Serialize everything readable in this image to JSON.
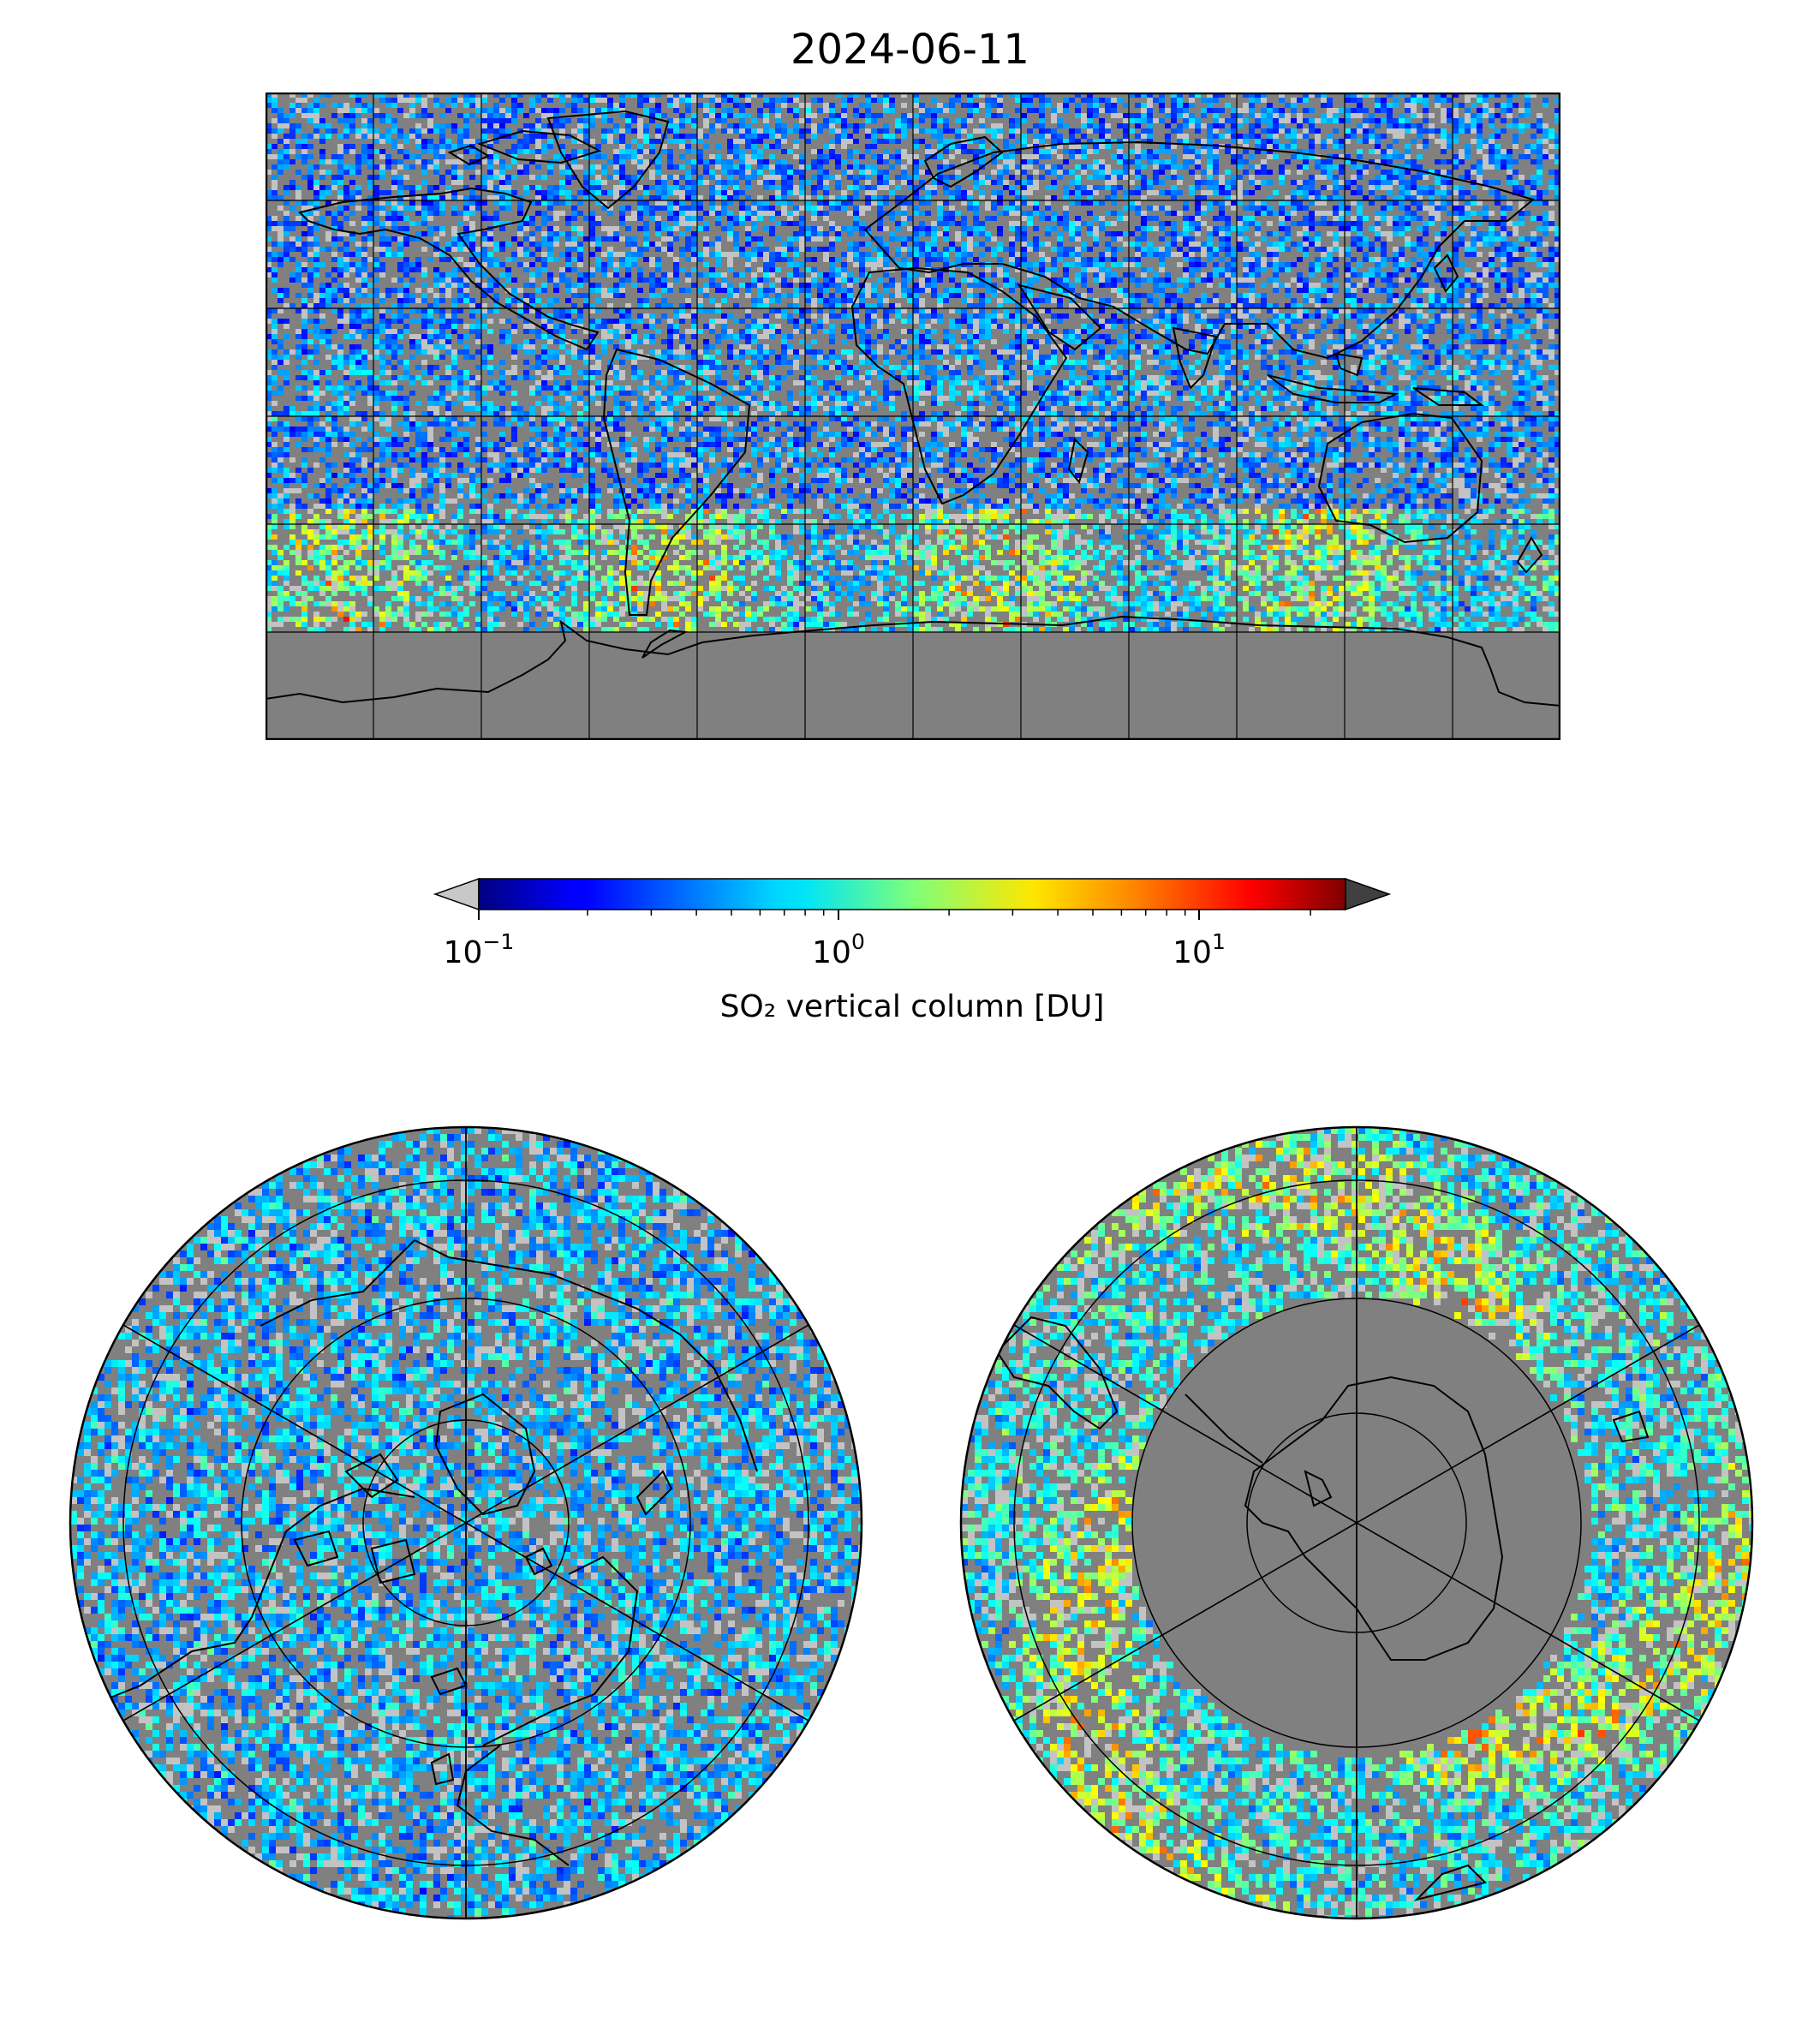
{
  "title": "2024-06-11",
  "colorbar": {
    "label": "SO₂ vertical column [DU]",
    "scale": "log",
    "range": [
      0.1,
      25
    ],
    "extend": "both",
    "colormap": "jet",
    "under_color": "#c8c8c8",
    "over_color": "#404040",
    "ticks": [
      {
        "value": 0.1,
        "base": "10",
        "exp": "−1"
      },
      {
        "value": 1,
        "base": "10",
        "exp": "0"
      },
      {
        "value": 10,
        "base": "10",
        "exp": "1"
      }
    ]
  },
  "maps": {
    "background_color": "#808080",
    "global": {
      "projection": "equirectangular",
      "grid": true
    },
    "north_polar": {
      "projection": "north polar stereographic",
      "grid": true
    },
    "south_polar": {
      "projection": "south polar stereographic",
      "grid": true
    }
  }
}
